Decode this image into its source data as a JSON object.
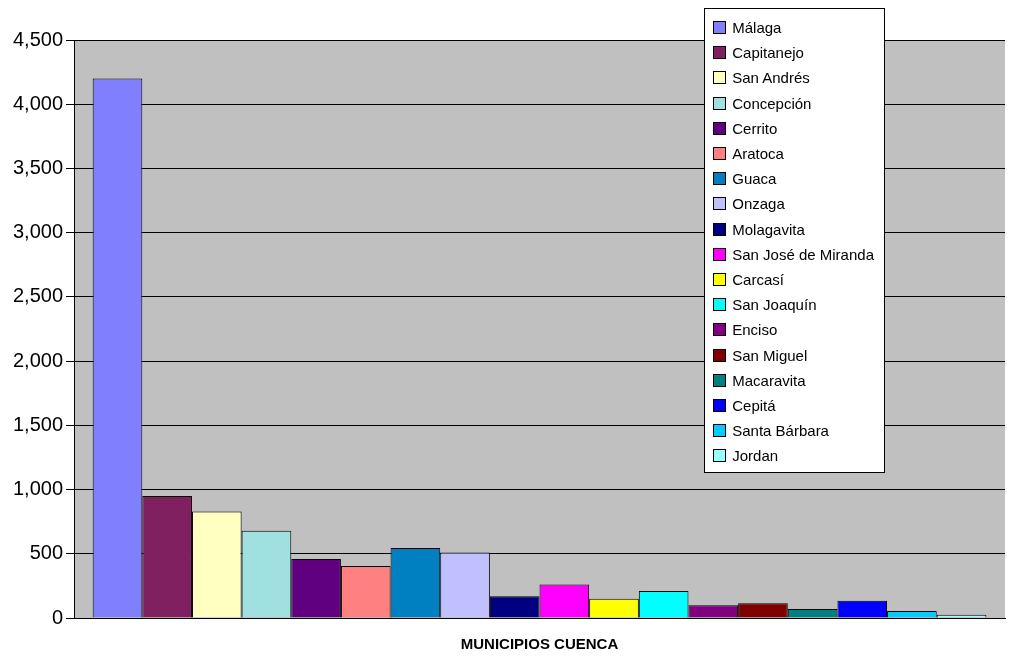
{
  "chart_data": {
    "type": "bar",
    "xlabel": "MUNICIPIOS CUENCA",
    "categories": [
      null
    ],
    "series": [
      {
        "name": "Málaga",
        "color": "#8080ff",
        "values": [
          4200
        ]
      },
      {
        "name": "Capitanejo",
        "color": "#802060",
        "values": [
          950
        ]
      },
      {
        "name": "San Andrés",
        "color": "#ffffc0",
        "values": [
          830
        ]
      },
      {
        "name": "Concepción",
        "color": "#a0e0e0",
        "values": [
          680
        ]
      },
      {
        "name": "Cerrito",
        "color": "#600080",
        "values": [
          460
        ]
      },
      {
        "name": "Aratoca",
        "color": "#ff8080",
        "values": [
          405
        ]
      },
      {
        "name": "Guaca",
        "color": "#0080c0",
        "values": [
          545
        ]
      },
      {
        "name": "Onzaga",
        "color": "#c0c0ff",
        "values": [
          510
        ]
      },
      {
        "name": "Molagavita",
        "color": "#000080",
        "values": [
          170
        ]
      },
      {
        "name": "San José de Miranda",
        "color": "#ff00ff",
        "values": [
          260
        ]
      },
      {
        "name": "Carcasí",
        "color": "#ffff00",
        "values": [
          150
        ]
      },
      {
        "name": "San Joaquín",
        "color": "#00ffff",
        "values": [
          210
        ]
      },
      {
        "name": "Enciso",
        "color": "#800080",
        "values": [
          100
        ]
      },
      {
        "name": "San Miguel",
        "color": "#800000",
        "values": [
          115
        ]
      },
      {
        "name": "Macaravita",
        "color": "#008080",
        "values": [
          70
        ]
      },
      {
        "name": "Cepitá",
        "color": "#0000ff",
        "values": [
          135
        ]
      },
      {
        "name": "Santa Bárbara",
        "color": "#00ccff",
        "values": [
          55
        ]
      },
      {
        "name": "Jordan",
        "color": "#99ffff",
        "values": [
          25
        ]
      }
    ],
    "ylim": [
      0,
      4500
    ],
    "yticks": [
      {
        "value": 0,
        "label": "0"
      },
      {
        "value": 500,
        "label": "500"
      },
      {
        "value": 1000,
        "label": "1,000"
      },
      {
        "value": 1500,
        "label": "1,500"
      },
      {
        "value": 2000,
        "label": "2,000"
      },
      {
        "value": 2500,
        "label": "2,500"
      },
      {
        "value": 3000,
        "label": "3,000"
      },
      {
        "value": 3500,
        "label": "3,500"
      },
      {
        "value": 4000,
        "label": "4,000"
      },
      {
        "value": 4500,
        "label": "4,500"
      }
    ],
    "grid": "y",
    "legend": "top right"
  }
}
